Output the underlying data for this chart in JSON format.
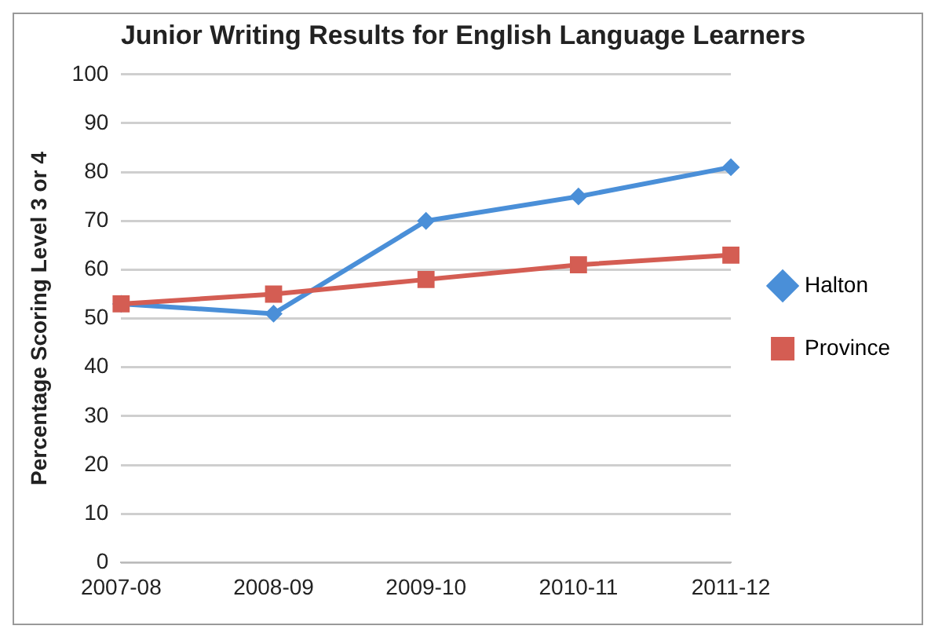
{
  "chart_data": {
    "type": "line",
    "title": "Junior Writing Results for English Language Learners",
    "ylabel": "Percentage Scoring Level 3 or 4",
    "categories": [
      "2007-08",
      "2008-09",
      "2009-10",
      "2010-11",
      "2011-12"
    ],
    "series": [
      {
        "name": "Halton",
        "color": "#4a8fd8",
        "values": [
          53,
          51,
          70,
          75,
          81
        ],
        "marker": "diamond"
      },
      {
        "name": "Province",
        "color": "#d45d53",
        "values": [
          53,
          55,
          58,
          61,
          63
        ],
        "marker": "square"
      }
    ],
    "ylim": [
      0,
      100
    ],
    "yticks": [
      0,
      10,
      20,
      30,
      40,
      50,
      60,
      70,
      80,
      90,
      100
    ],
    "grid": "y",
    "legend": "right",
    "line_style": "solid"
  }
}
